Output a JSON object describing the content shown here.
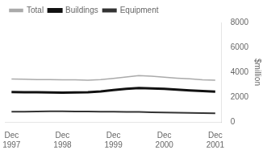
{
  "chart_data": {
    "type": "line",
    "ylabel": "$million",
    "categories": [
      "Dec\n1997",
      null,
      null,
      null,
      "Dec\n1998",
      null,
      null,
      null,
      "Dec\n1999",
      null,
      null,
      null,
      "Dec\n2000",
      null,
      null,
      null,
      "Dec\n2001"
    ],
    "series": [
      {
        "name": "Total",
        "color": "#aaaaaa",
        "values": [
          3450,
          3430,
          3410,
          3400,
          3390,
          3380,
          3360,
          3400,
          3500,
          3620,
          3720,
          3680,
          3600,
          3520,
          3460,
          3390,
          3350
        ]
      },
      {
        "name": "Buildings",
        "color": "#111111",
        "values": [
          2400,
          2390,
          2380,
          2370,
          2360,
          2370,
          2390,
          2450,
          2560,
          2660,
          2720,
          2700,
          2660,
          2600,
          2540,
          2480,
          2440
        ]
      },
      {
        "name": "Equipment",
        "color": "#333333",
        "values": [
          820,
          830,
          840,
          850,
          850,
          840,
          840,
          830,
          820,
          810,
          800,
          780,
          760,
          740,
          720,
          710,
          700
        ]
      }
    ],
    "ylim": [
      0,
      8000
    ],
    "yticks": [
      0,
      2000,
      4000,
      6000,
      8000
    ],
    "grid": false,
    "legend": "upper left"
  }
}
